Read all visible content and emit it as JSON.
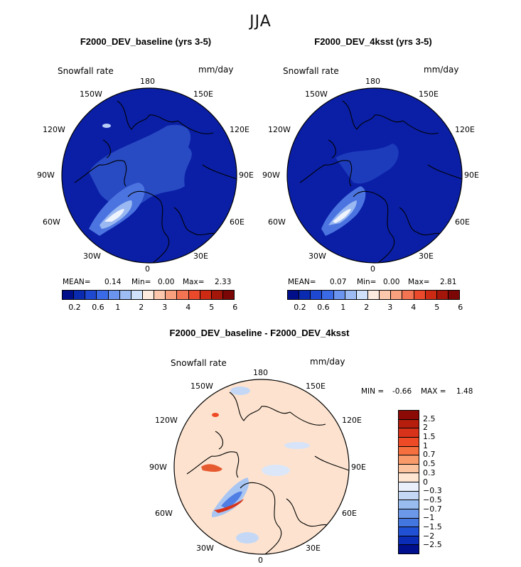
{
  "season": "JJA",
  "variable": "Snowfall rate",
  "units": "mm/day",
  "lon_labels": {
    "top": "180",
    "left_top": "150W",
    "right_top": "150E",
    "left_upper": "120W",
    "right_upper": "120E",
    "left_mid": "90W",
    "right_mid": "90E",
    "left_lower": "60W",
    "right_lower": "60E",
    "left_bottom": "30W",
    "right_bottom": "30E",
    "bottom": "0"
  },
  "panel1": {
    "title": "F2000_DEV_baseline (yrs 3-5)",
    "mean_label": "MEAN=",
    "mean": "0.14",
    "min_label": "Min=",
    "min": "0.00",
    "max_label": "Max=",
    "max": "2.33"
  },
  "panel2": {
    "title": "F2000_DEV_4ksst (yrs 3-5)",
    "mean_label": "MEAN=",
    "mean": "0.07",
    "min_label": "Min=",
    "min": "0.00",
    "max_label": "Max=",
    "max": "2.81"
  },
  "panel3": {
    "title": "F2000_DEV_baseline - F2000_DEV_4ksst",
    "min_label": "MIN =",
    "min": "-0.66",
    "max_label": "MAX =",
    "max": "1.48"
  },
  "colorbar_abs": {
    "colors": [
      "#000e8a",
      "#0a2bb0",
      "#1f48d0",
      "#3a6ae6",
      "#6b94ee",
      "#9dbcf3",
      "#cfe0fa",
      "#fdeadf",
      "#fcc7ad",
      "#f9a07f",
      "#f37452",
      "#ea4a2b",
      "#cd2a14",
      "#a4150a",
      "#7a0605"
    ],
    "ticks": [
      "0.2",
      "0.6",
      "1",
      "2",
      "3",
      "4",
      "5",
      "6"
    ]
  },
  "colorbar_diff": {
    "colors": [
      "#8b0a05",
      "#b51d0c",
      "#d8331a",
      "#ee4a26",
      "#f6703f",
      "#f99a6a",
      "#fcc39f",
      "#fde5d2",
      "#eaf0fb",
      "#c4d8f6",
      "#98bbf0",
      "#6c98e9",
      "#4476e0",
      "#2050d3",
      "#0a2cb6",
      "#000f8e"
    ],
    "ticks": [
      "2.5",
      "2",
      "1.5",
      "1",
      "0.7",
      "0.5",
      "0.3",
      "0",
      "−0.3",
      "−0.5",
      "−0.7",
      "−1",
      "−1.5",
      "−2",
      "−2.5"
    ]
  }
}
